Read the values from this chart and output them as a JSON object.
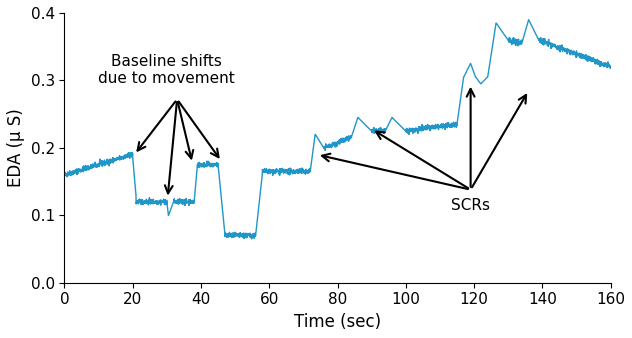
{
  "line_color": "#2196c8",
  "line_width": 1.0,
  "xlim": [
    0,
    160
  ],
  "ylim": [
    0,
    0.4
  ],
  "xlabel": "Time (sec)",
  "ylabel": "EDA (μ S)",
  "xticks": [
    0,
    20,
    40,
    60,
    80,
    100,
    120,
    140,
    160
  ],
  "yticks": [
    0,
    0.1,
    0.2,
    0.3,
    0.4
  ],
  "baseline_text": "Baseline shifts\ndue to movement",
  "scrs_text": "SCRs",
  "fontsize_labels": 12,
  "fontsize_ticks": 11,
  "fontsize_annot": 11
}
